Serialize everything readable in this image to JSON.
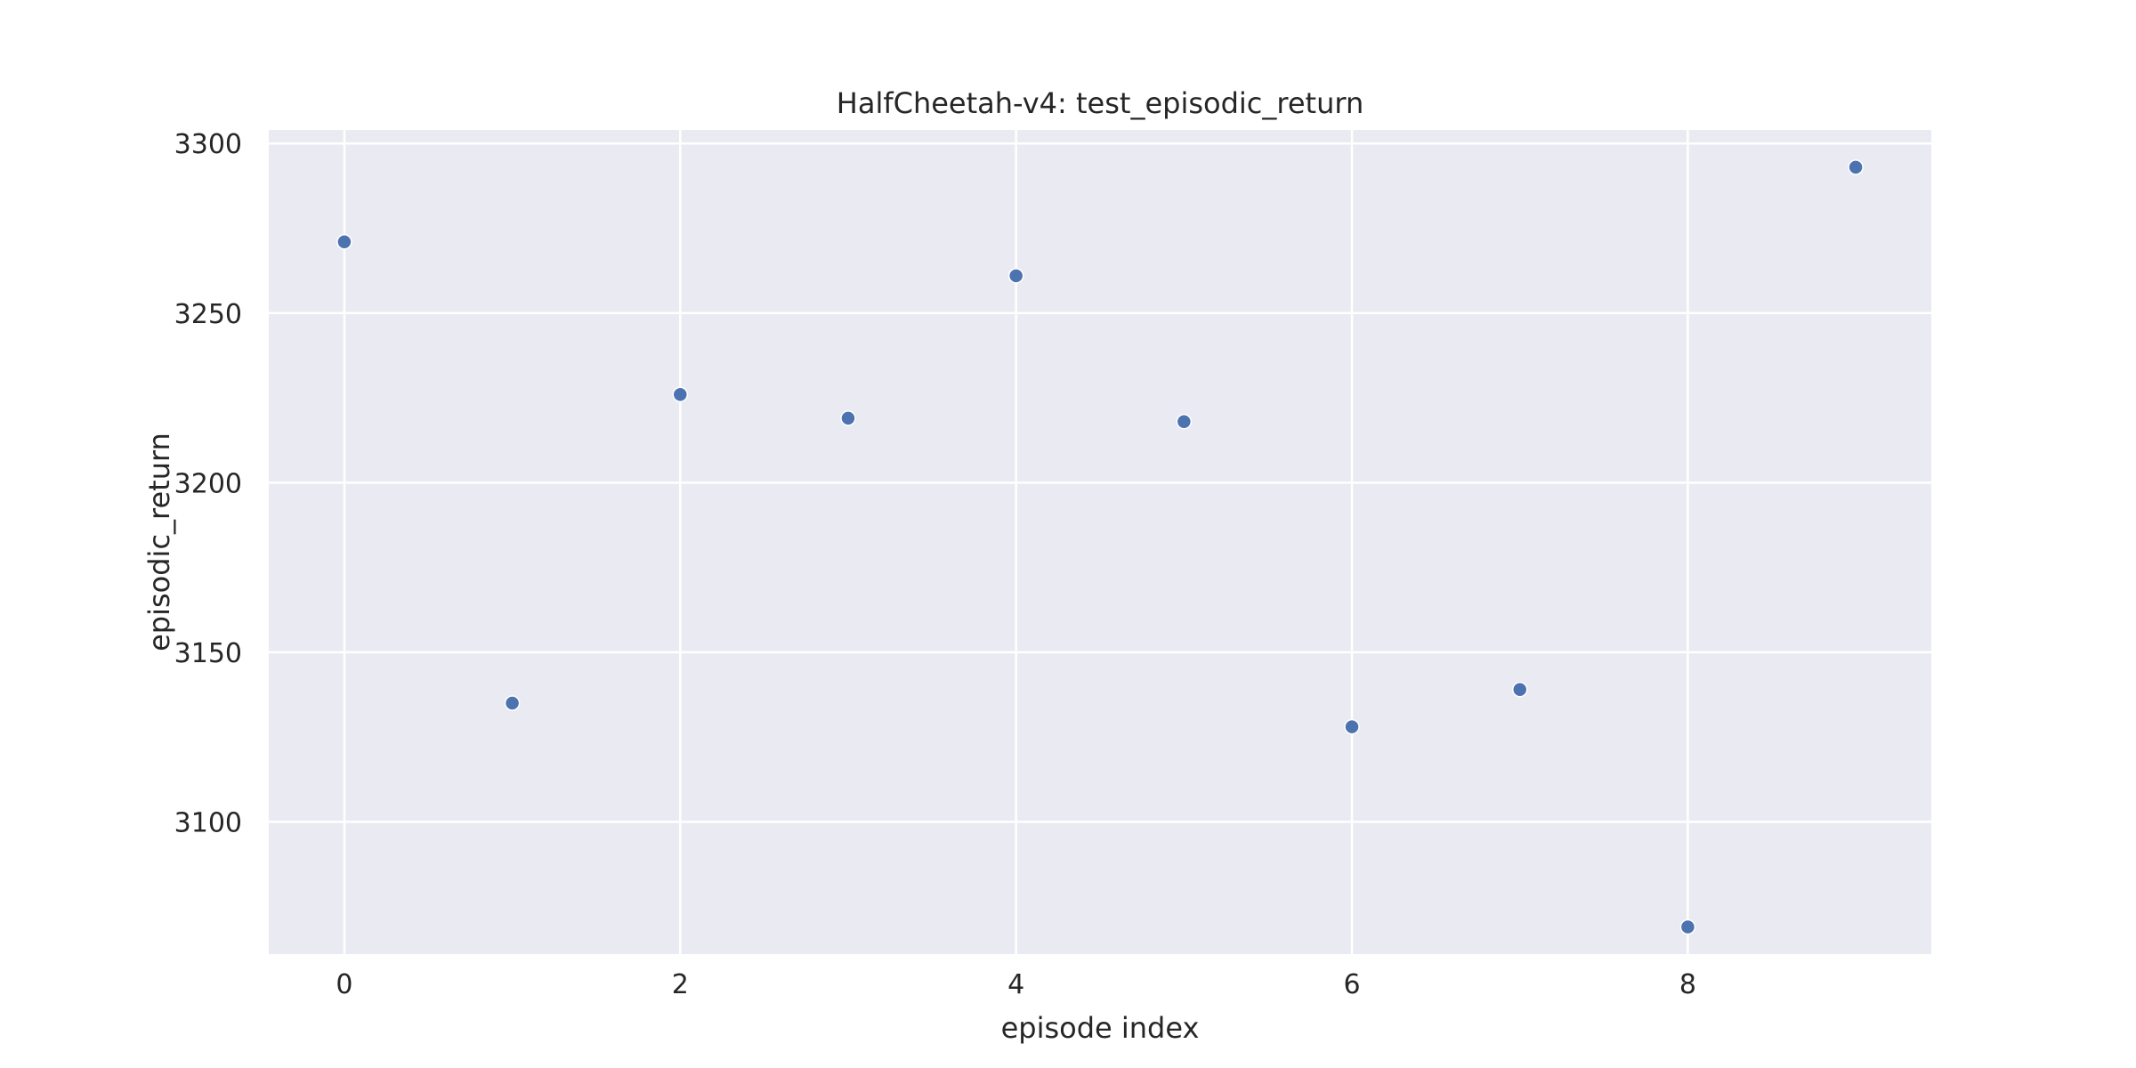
{
  "chart_data": {
    "type": "scatter",
    "title": "HalfCheetah-v4: test_episodic_return",
    "xlabel": "episode index",
    "ylabel": "episodic_return",
    "xlim": [
      -0.45,
      9.45
    ],
    "ylim": [
      3061,
      3304
    ],
    "x_ticks": [
      0,
      2,
      4,
      6,
      8
    ],
    "y_ticks": [
      3100,
      3150,
      3200,
      3250,
      3300
    ],
    "grid": true,
    "background": "#eaeaf2",
    "grid_color": "#ffffff",
    "marker_color": "#4c72b0",
    "series": [
      {
        "x": [
          0,
          1,
          2,
          3,
          4,
          5,
          6,
          7,
          8,
          9
        ],
        "y": [
          3271,
          3135,
          3226,
          3219,
          3261,
          3218,
          3128,
          3139,
          3069,
          3293
        ]
      }
    ]
  }
}
